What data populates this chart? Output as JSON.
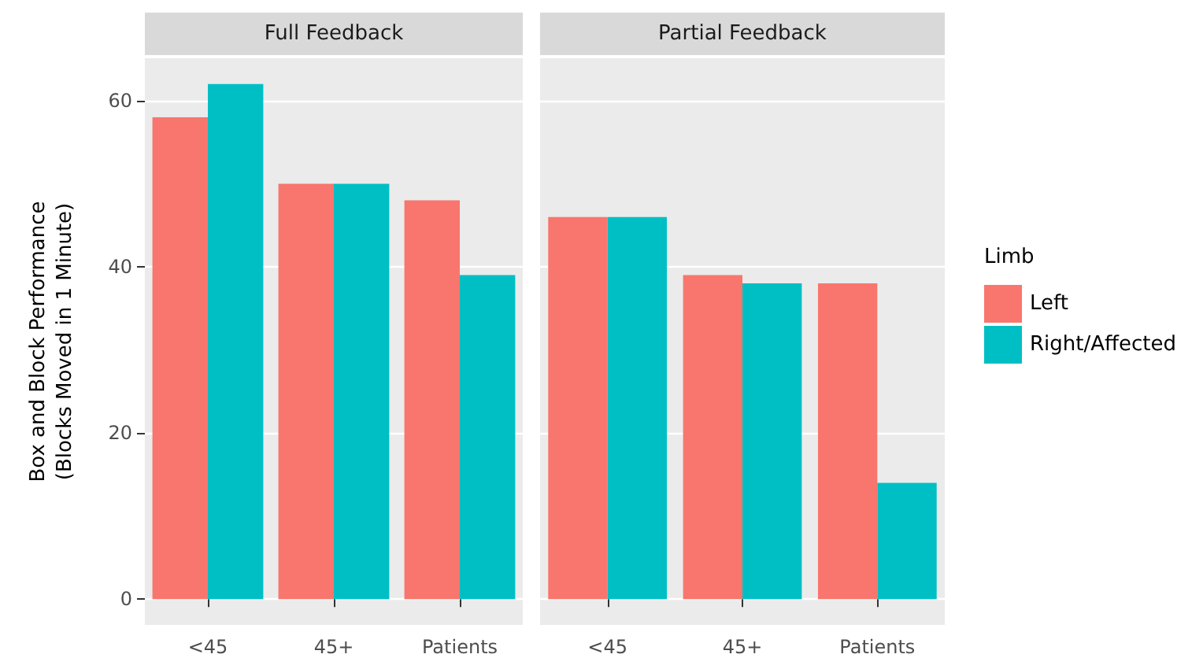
{
  "chart_data": [
    {
      "type": "bar",
      "title": "Full Feedback",
      "ylabel": "Box and Block Performance\n(Blocks Moved in 1 Minute)",
      "categories": [
        "<45",
        "45+",
        "Patients"
      ],
      "series": [
        {
          "color": "#f8766d",
          "values": [
            58,
            50,
            48
          ]
        },
        {
          "color": "#00bfc4",
          "values": [
            62,
            50,
            39
          ]
        }
      ],
      "ylim": [
        -3.1,
        65.1
      ],
      "yticks": [
        0,
        20,
        40,
        60
      ],
      "grid": "y",
      "legend": false
    },
    {
      "type": "bar",
      "title": "Partial Feedback",
      "categories": [
        "<45",
        "45+",
        "Patients"
      ],
      "series": [
        {
          "name": "Left",
          "color": "#f8766d",
          "values": [
            46,
            39,
            38
          ]
        },
        {
          "name": "Right/Affected",
          "color": "#00bfc4",
          "values": [
            46,
            38,
            14
          ]
        }
      ],
      "ylim": [
        -3.1,
        65.1
      ],
      "yticks": [
        0,
        20,
        40,
        60
      ],
      "grid": "y",
      "tick_labels": "x",
      "legend": "right",
      "legend_title": "Limb"
    }
  ]
}
